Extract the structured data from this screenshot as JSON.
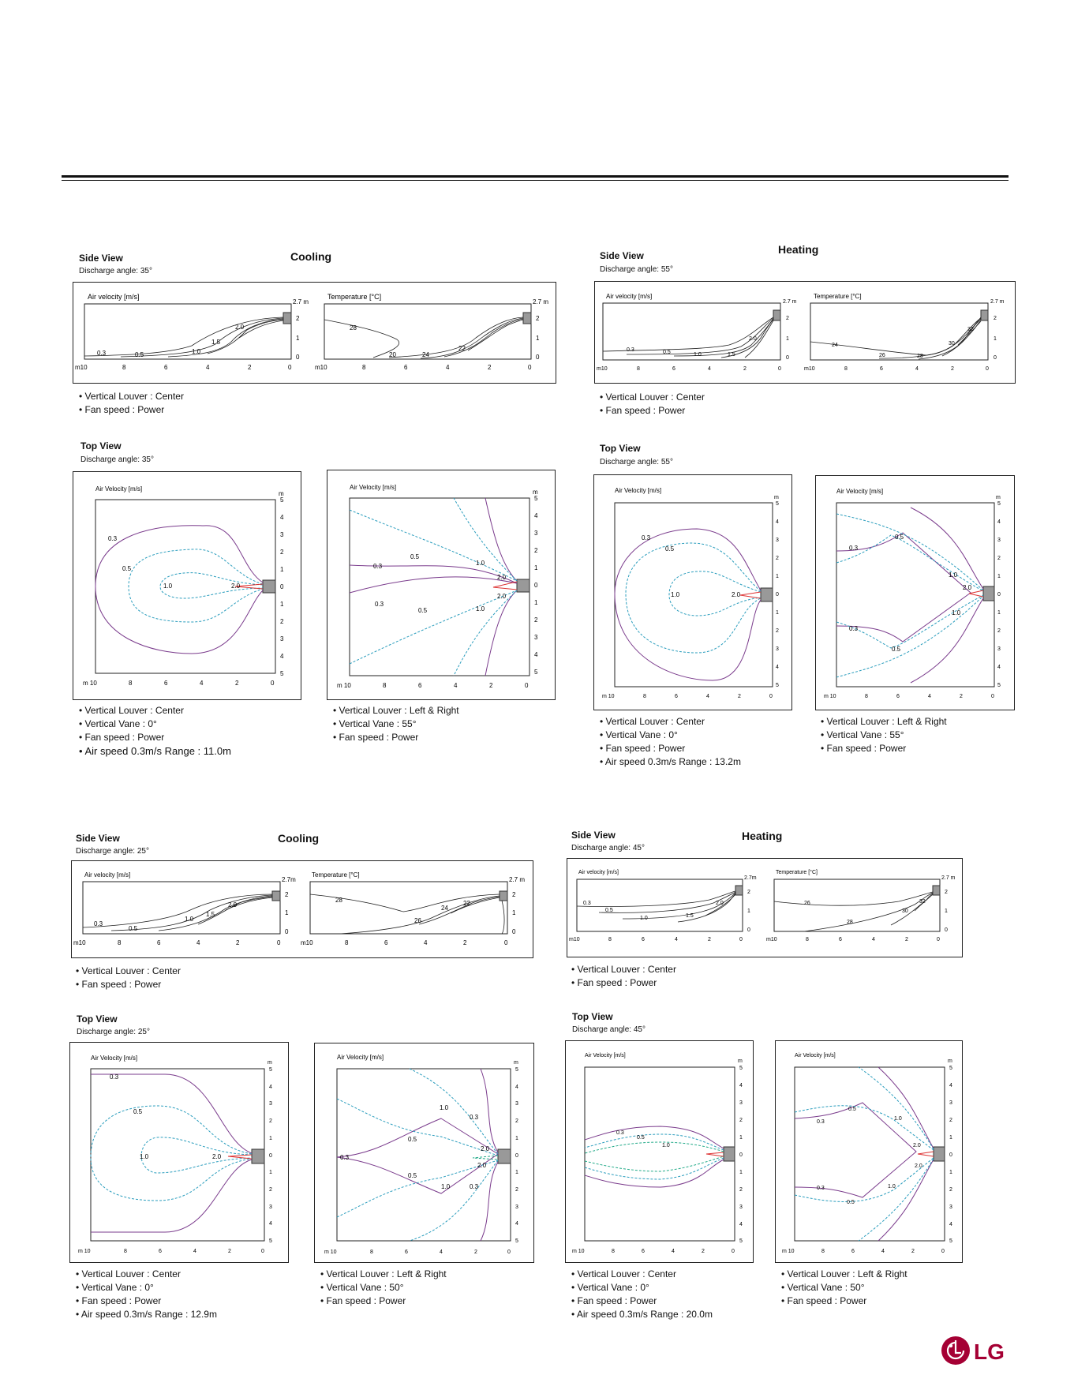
{
  "side": {
    "title": "Side View",
    "air_label": "Air velocity [m/s]",
    "temp_label": "Temperature [°C]",
    "height_label": "2.7 m",
    "height_label_b": "2.7m",
    "x_ticks": [
      "m10",
      "8",
      "6",
      "4",
      "2",
      "0"
    ],
    "y_ticks": [
      "2",
      "1",
      "0"
    ]
  },
  "top": {
    "title": "Top View",
    "air_label": "Air Velocity [m/s]",
    "x_ticks": [
      "m 10",
      "8",
      "6",
      "4",
      "2",
      "0"
    ],
    "y_ticks": [
      "m",
      "5",
      "4",
      "3",
      "2",
      "1",
      "0",
      "1",
      "2",
      "3",
      "4",
      "5"
    ]
  },
  "panels": [
    {
      "mode": "Cooling",
      "side_angle": "Discharge angle: 35°",
      "top_angle": "Discharge angle: 35°",
      "side_air_labels": [
        "0.3",
        "0.5",
        "1.0",
        "1.5",
        "2.0"
      ],
      "side_temp_labels": [
        "28",
        "20",
        "24",
        "22"
      ],
      "side_bullets": [
        "Vertical Louver : Center",
        "Fan speed : Power"
      ],
      "top_left_labels": [
        "0.3",
        "0.5",
        "1.0",
        "2.0"
      ],
      "top_right_labels": [
        "0.3",
        "0.5",
        "1.0",
        "2.0",
        "0.3",
        "0.5",
        "1.0",
        "2.0"
      ],
      "top_left_bullets": [
        "Vertical Louver : Center",
        "Vertical Vane : 0°",
        "Fan speed : Power",
        "Air speed 0.3m/s Range : 11.0m"
      ],
      "top_right_bullets": [
        "Vertical Louver : Left & Right",
        "Vertical Vane : 55°",
        "Fan speed : Power"
      ]
    },
    {
      "mode": "Heating",
      "side_angle": "Discharge angle: 55°",
      "top_angle": "Discharge angle: 55°",
      "side_air_labels": [
        "0.3",
        "0.5",
        "1.0",
        "1.5",
        "2.0"
      ],
      "side_temp_labels": [
        "24",
        "26",
        "28",
        "30",
        "32"
      ],
      "side_bullets": [
        "Vertical Louver : Center",
        "Fan speed : Power"
      ],
      "top_left_labels": [
        "0.3",
        "0.5",
        "1.0",
        "2.0"
      ],
      "top_right_labels": [
        "0.5",
        "0.3",
        "1.0",
        "2.0",
        "0.3",
        "0.5",
        "1.0"
      ],
      "top_left_bullets": [
        "Vertical Louver : Center",
        "Vertical Vane : 0°",
        "Fan speed : Power",
        "Air speed 0.3m/s Range : 13.2m"
      ],
      "top_right_bullets": [
        "Vertical Louver : Left & Right",
        "Vertical Vane : 55°",
        "Fan speed : Power"
      ]
    },
    {
      "mode": "Cooling",
      "side_angle": "Discharge angle: 25°",
      "top_angle": "Discharge angle: 25°",
      "side_air_labels": [
        "0.3",
        "0.5",
        "1.0",
        "1.5",
        "2.0"
      ],
      "side_temp_labels": [
        "28",
        "24",
        "22",
        "26"
      ],
      "side_bullets": [
        "Vertical Louver : Center",
        "Fan speed : Power"
      ],
      "top_left_labels": [
        "0.3",
        "0.5",
        "1.0",
        "2.0"
      ],
      "top_right_labels": [
        "1.0",
        "0.3",
        "0.5",
        "2.0",
        "0.3",
        "0.5",
        "1.0",
        "2.0",
        "0.3"
      ],
      "top_left_bullets": [
        "Vertical Louver : Center",
        "Vertical Vane : 0°",
        "Fan speed : Power",
        "Air speed 0.3m/s Range : 12.9m"
      ],
      "top_right_bullets": [
        "Vertical Louver : Left & Right",
        "Vertical Vane : 50°",
        "Fan speed : Power"
      ]
    },
    {
      "mode": "Heating",
      "side_angle": "Discharge angle: 45°",
      "top_angle": "Discharge angle: 45°",
      "side_air_labels": [
        "0.3",
        "0.5",
        "1.0",
        "1.5",
        "2.0"
      ],
      "side_temp_labels": [
        "26",
        "28",
        "30",
        "32"
      ],
      "side_bullets": [
        "Vertical Louver : Center",
        "Fan speed : Power"
      ],
      "top_left_labels": [
        "0.3",
        "0.5",
        "1.0"
      ],
      "top_right_labels": [
        "0.5",
        "0.3",
        "1.0",
        "2.0",
        "0.3",
        "0.5",
        "1.0",
        "2.0"
      ],
      "top_left_bullets": [
        "Vertical Louver : Center",
        "Vertical Vane : 0°",
        "Fan speed : Power",
        "Air speed 0.3m/s Range : 20.0m"
      ],
      "top_right_bullets": [
        "Vertical Louver : Left & Right",
        "Vertical Vane : 50°",
        "Fan speed : Power"
      ]
    }
  ],
  "logo": {
    "text": "LG",
    "color": "#a50034"
  }
}
